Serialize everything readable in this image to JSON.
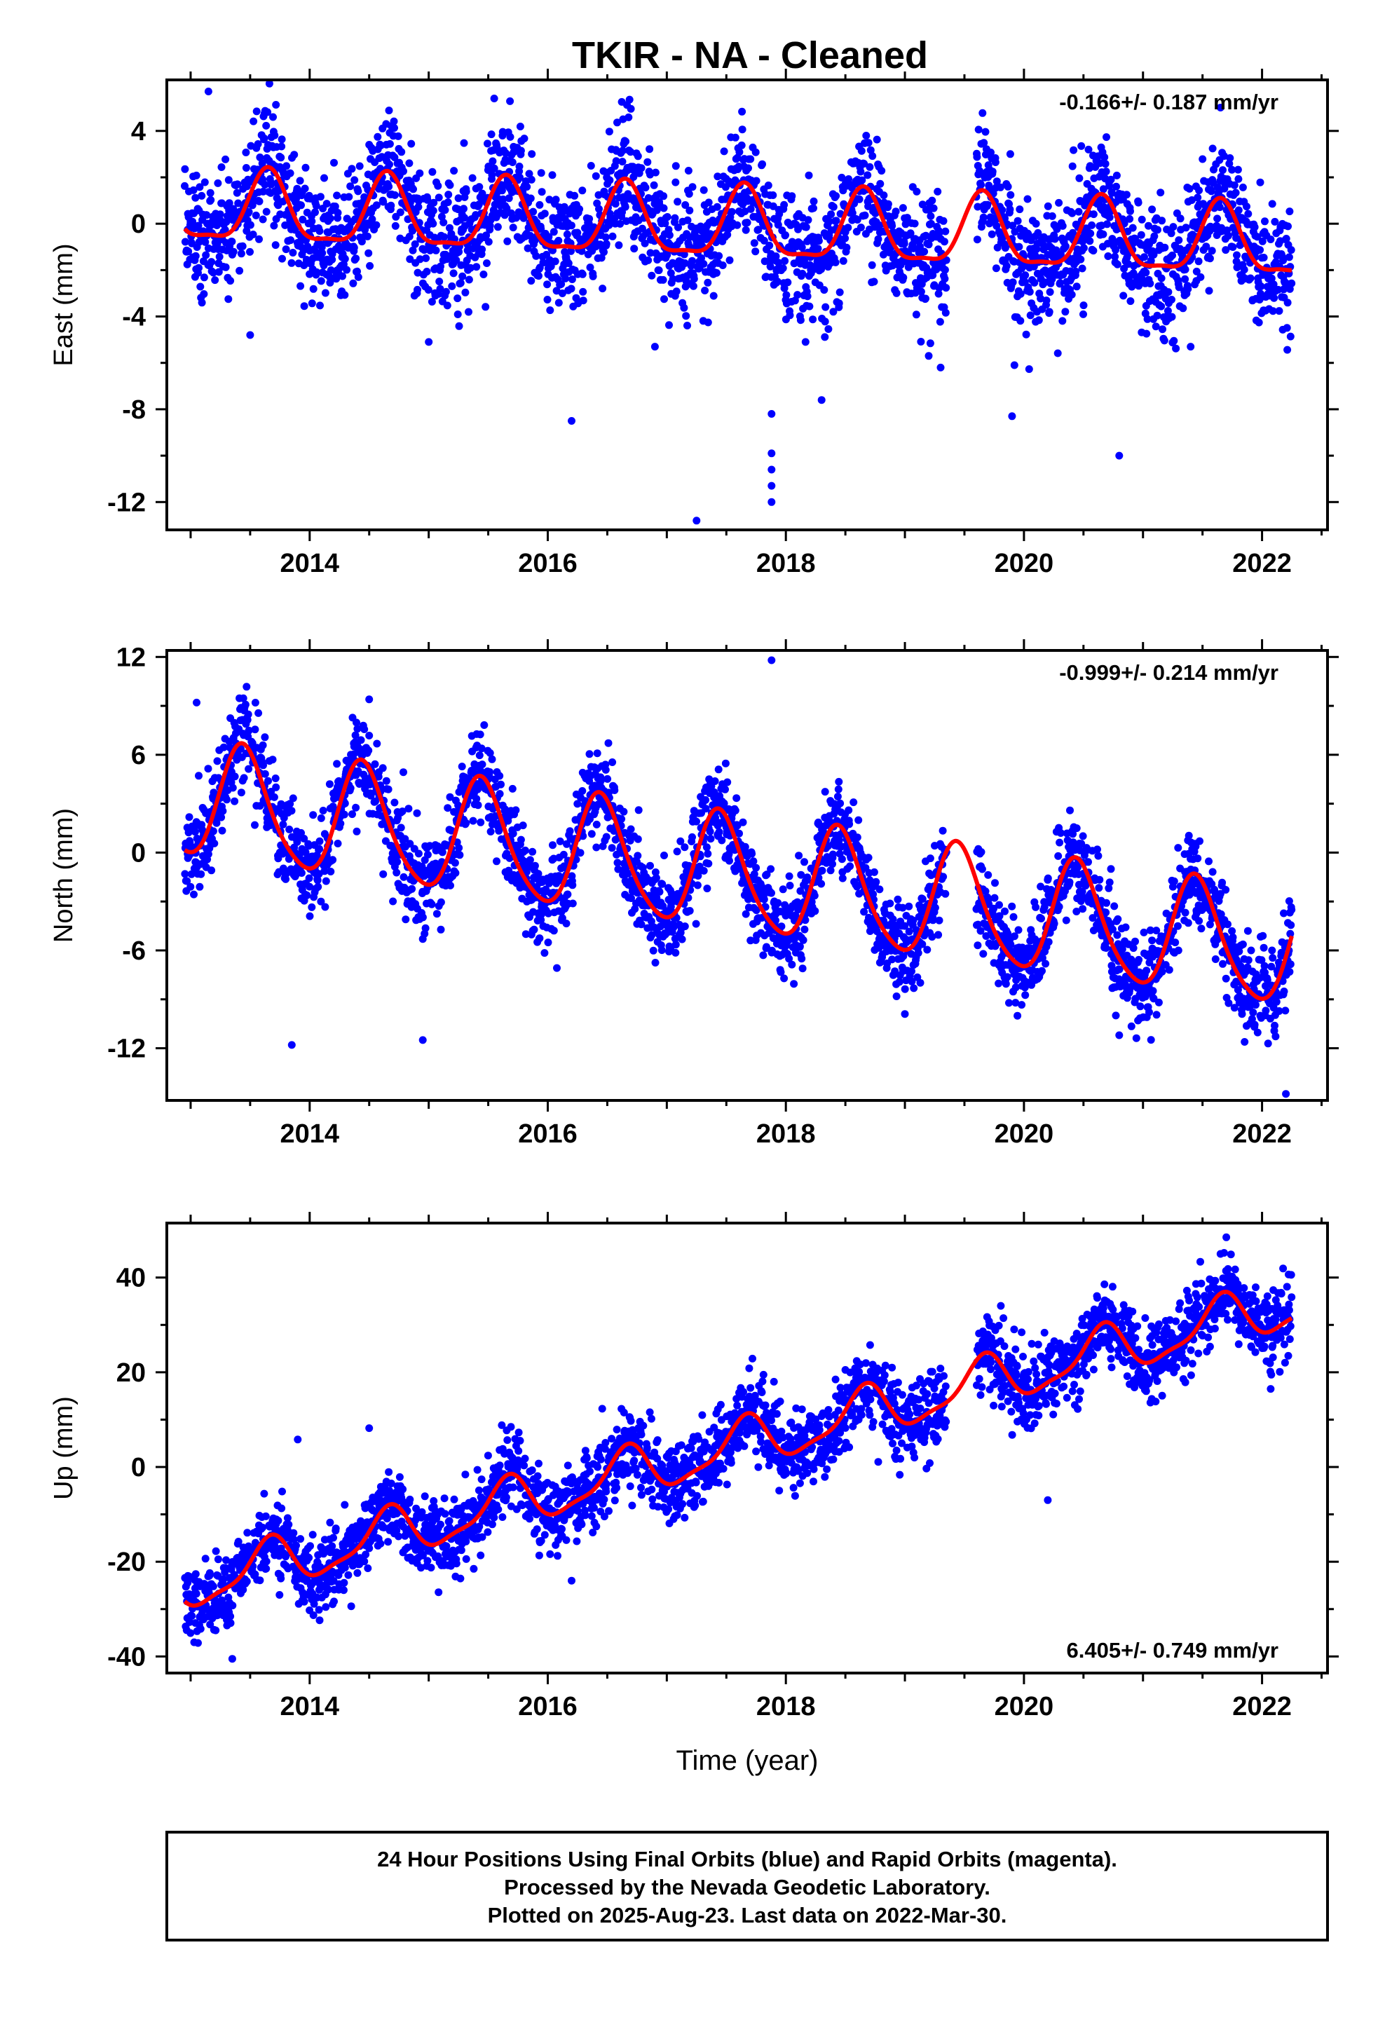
{
  "title": "TKIR  - NA - Cleaned",
  "colors": {
    "points": "#0000ff",
    "model": "#ff0000",
    "frame": "#000000"
  },
  "chart_data": [
    {
      "type": "scatter",
      "name": "east",
      "ylabel": "East (mm)",
      "xlim": [
        2012.8,
        2022.55
      ],
      "ylim": [
        -13.2,
        6.2
      ],
      "yticks": [
        4,
        0,
        -4,
        -8,
        -12
      ],
      "xticks": [
        2014,
        2016,
        2018,
        2020,
        2022
      ],
      "rate_label": "-0.166+/- 0.187 mm/yr",
      "rate_position": "top-right",
      "data_range": [
        2012.95,
        2022.25
      ],
      "gap": [
        2019.35,
        2019.6
      ],
      "trend": {
        "at_2013": 0.6,
        "slope": -0.166
      },
      "annual": {
        "amplitude": 1.5,
        "peak": 0.65
      },
      "semiannual": {
        "amplitude": 0.45,
        "peak": 0.15
      },
      "scatter_sd": 1.3,
      "outliers": [
        {
          "x": 2013.15,
          "y": 5.7
        },
        {
          "x": 2013.5,
          "y": -4.8
        },
        {
          "x": 2015.0,
          "y": -5.1
        },
        {
          "x": 2015.55,
          "y": 5.4
        },
        {
          "x": 2016.2,
          "y": -8.5
        },
        {
          "x": 2016.9,
          "y": -5.3
        },
        {
          "x": 2017.25,
          "y": -12.8
        },
        {
          "x": 2017.88,
          "y": -8.2
        },
        {
          "x": 2017.88,
          "y": -9.9
        },
        {
          "x": 2017.88,
          "y": -10.6
        },
        {
          "x": 2017.88,
          "y": -11.3
        },
        {
          "x": 2017.88,
          "y": -12.0
        },
        {
          "x": 2018.3,
          "y": -7.6
        },
        {
          "x": 2019.2,
          "y": -5.7
        },
        {
          "x": 2019.3,
          "y": -6.2
        },
        {
          "x": 2019.9,
          "y": -8.3
        },
        {
          "x": 2019.92,
          "y": -6.1
        },
        {
          "x": 2020.8,
          "y": -10.0
        },
        {
          "x": 2021.4,
          "y": -5.3
        }
      ]
    },
    {
      "type": "scatter",
      "name": "north",
      "ylabel": "North (mm)",
      "xlim": [
        2012.8,
        2022.55
      ],
      "ylim": [
        -15.2,
        12.4
      ],
      "yticks": [
        12,
        6,
        0,
        -6,
        -12
      ],
      "xticks": [
        2014,
        2016,
        2018,
        2020,
        2022
      ],
      "rate_label": "-0.999+/- 0.214 mm/yr",
      "rate_position": "top-right",
      "data_range": [
        2012.95,
        2022.25
      ],
      "gap": [
        2019.35,
        2019.6
      ],
      "trend": {
        "at_2013": 3.2,
        "slope": -0.999
      },
      "annual": {
        "amplitude": 3.5,
        "peak": 0.45
      },
      "semiannual": {
        "amplitude": 0.5,
        "peak": 0.4
      },
      "scatter_sd": 1.4,
      "outliers": [
        {
          "x": 2013.05,
          "y": 9.2
        },
        {
          "x": 2013.85,
          "y": -11.8
        },
        {
          "x": 2014.5,
          "y": 9.4
        },
        {
          "x": 2014.95,
          "y": -5.3
        },
        {
          "x": 2014.95,
          "y": -11.5
        },
        {
          "x": 2017.88,
          "y": 11.8
        },
        {
          "x": 2019.0,
          "y": -9.9
        },
        {
          "x": 2020.8,
          "y": -11.2
        },
        {
          "x": 2022.2,
          "y": -14.8
        }
      ]
    },
    {
      "type": "scatter",
      "name": "up",
      "ylabel": "Up (mm)",
      "xlabel": "Time (year)",
      "xlim": [
        2012.8,
        2022.55
      ],
      "ylim": [
        -43.5,
        51.5
      ],
      "yticks": [
        40,
        20,
        0,
        -20,
        -40
      ],
      "xticks": [
        2014,
        2016,
        2018,
        2020,
        2022
      ],
      "rate_label": "6.405+/- 0.749 mm/yr",
      "rate_position": "bottom-right",
      "data_range": [
        2012.95,
        2022.25
      ],
      "gap": [
        2019.35,
        2019.6
      ],
      "trend": {
        "at_2013": -25.0,
        "slope": 6.405
      },
      "annual": {
        "amplitude": 5.0,
        "peak": 0.65
      },
      "semiannual": {
        "amplitude": 1.5,
        "peak": 0.2
      },
      "scatter_sd": 4.0,
      "outliers": [
        {
          "x": 2013.35,
          "y": -40.5
        },
        {
          "x": 2013.9,
          "y": 5.8
        },
        {
          "x": 2014.5,
          "y": 8.2
        },
        {
          "x": 2016.2,
          "y": -24.0
        },
        {
          "x": 2017.9,
          "y": 18.0
        },
        {
          "x": 2018.5,
          "y": 20.5
        },
        {
          "x": 2020.2,
          "y": -7.0
        },
        {
          "x": 2021.7,
          "y": 48.5
        }
      ]
    }
  ],
  "footer": {
    "lines": [
      "24 Hour Positions Using Final Orbits (blue) and Rapid Orbits (magenta).",
      "Processed by the Nevada Geodetic Laboratory.",
      "Plotted on 2025-Aug-23. Last data on 2022-Mar-30."
    ]
  }
}
